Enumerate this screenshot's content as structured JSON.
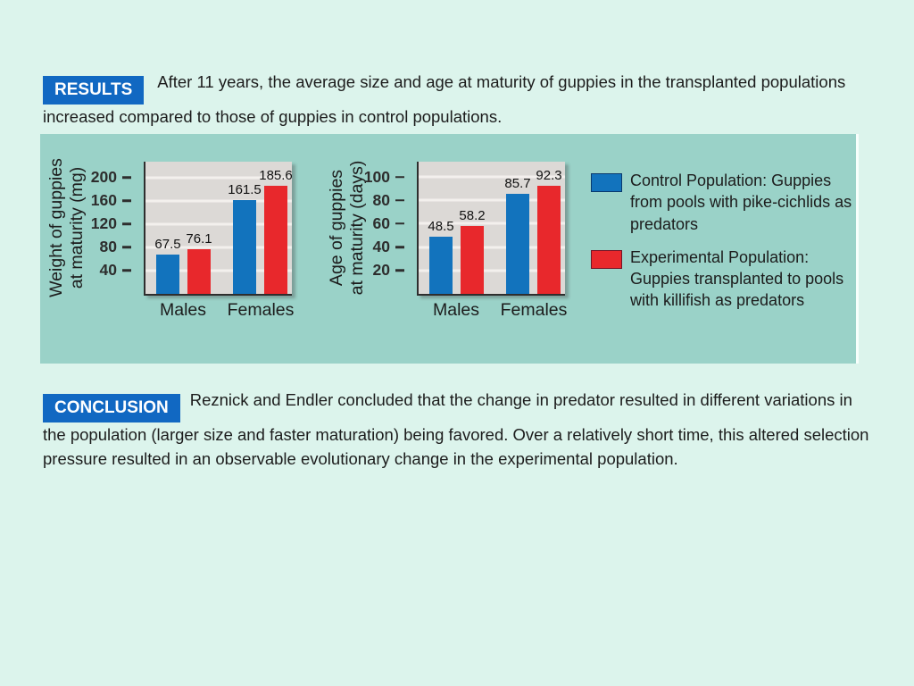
{
  "slide": {
    "background": "#dcf4ec"
  },
  "results": {
    "badge_label": "RESULTS",
    "text": "After 11 years, the average size and age at maturity of guppies in the transplanted populations increased compared to those of guppies in control populations."
  },
  "conclusion": {
    "badge_label": "CONCLUSION",
    "text": "Reznick and Endler concluded that the change in predator resulted in different variations in the population (larger size and faster maturation) being favored. Over a relatively short time, this altered selection pressure resulted in an observable evolutionary change in the experimental population."
  },
  "colors": {
    "background": "#dcf4ec",
    "badge_blue": "#1168c2",
    "control_bar": "#1273bd",
    "experimental_bar": "#e8282c",
    "panel_teal": "#9ad2c8",
    "plot_background": "#dcd9d6",
    "gridline": "#f3f0ed",
    "axis": "#2e2e2e",
    "text": "#1c1c1c"
  },
  "legend": {
    "items": [
      {
        "series": "control",
        "label": "Control Population: Guppies from pools with pike-cichlids as predators"
      },
      {
        "series": "experimental",
        "label": "Experimental Population: Guppies transplanted to pools with killifish as predators"
      }
    ]
  },
  "chart_data": [
    {
      "type": "bar",
      "title": "",
      "ylabel": "Weight of guppies\nat maturity (mg)",
      "xlabel": "",
      "categories": [
        "Males",
        "Females"
      ],
      "series": [
        {
          "name": "Control Population",
          "values": [
            67.5,
            161.5
          ]
        },
        {
          "name": "Experimental Population",
          "values": [
            76.1,
            185.6
          ]
        }
      ],
      "yticks": [
        40,
        80,
        120,
        160,
        200
      ],
      "ylim": [
        0,
        227
      ],
      "grid": true,
      "legend_position": "right"
    },
    {
      "type": "bar",
      "title": "",
      "ylabel": "Age of guppies\nat maturity (days)",
      "xlabel": "",
      "categories": [
        "Males",
        "Females"
      ],
      "series": [
        {
          "name": "Control Population",
          "values": [
            48.5,
            85.7
          ]
        },
        {
          "name": "Experimental Population",
          "values": [
            58.2,
            92.3
          ]
        }
      ],
      "yticks": [
        20,
        40,
        60,
        80,
        100
      ],
      "ylim": [
        0,
        113
      ],
      "grid": true,
      "legend_position": "right"
    }
  ]
}
